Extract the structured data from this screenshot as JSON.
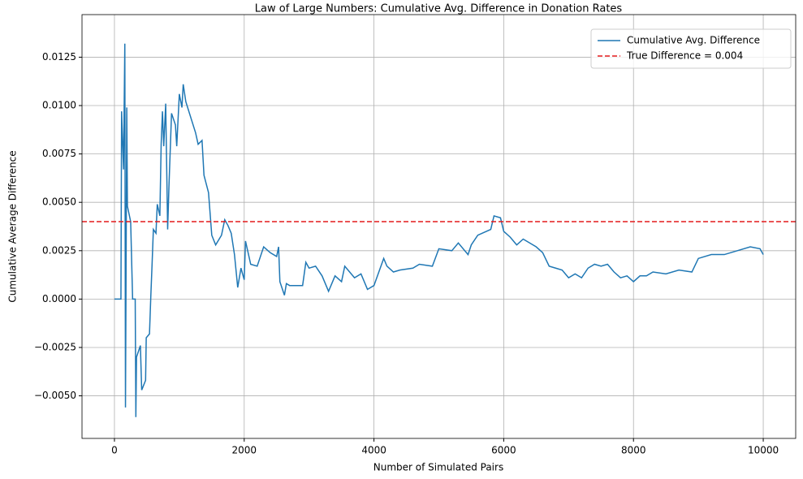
{
  "chart_data": {
    "type": "line",
    "title": "Law of Large Numbers: Cumulative Avg. Difference in Donation Rates",
    "x_label": "Number of Simulated Pairs",
    "y_label": "Cumulative Average Difference",
    "x": [
      0,
      100,
      110,
      140,
      160,
      170,
      190,
      200,
      250,
      280,
      320,
      330,
      340,
      400,
      420,
      480,
      490,
      540,
      560,
      580,
      600,
      640,
      660,
      700,
      720,
      740,
      760,
      790,
      820,
      840,
      880,
      940,
      960,
      1000,
      1040,
      1060,
      1100,
      1250,
      1290,
      1350,
      1380,
      1450,
      1500,
      1560,
      1650,
      1700,
      1750,
      1800,
      1850,
      1900,
      1950,
      2000,
      2020,
      2100,
      2200,
      2300,
      2400,
      2500,
      2530,
      2550,
      2620,
      2650,
      2700,
      2900,
      2950,
      3000,
      3100,
      3200,
      3300,
      3400,
      3500,
      3550,
      3700,
      3800,
      3900,
      4000,
      4150,
      4200,
      4300,
      4400,
      4600,
      4700,
      4900,
      5000,
      5200,
      5300,
      5450,
      5500,
      5600,
      5800,
      5850,
      5950,
      6000,
      6100,
      6200,
      6300,
      6400,
      6500,
      6600,
      6700,
      6800,
      6900,
      7000,
      7100,
      7200,
      7300,
      7400,
      7500,
      7600,
      7700,
      7800,
      7900,
      8000,
      8100,
      8200,
      8300,
      8500,
      8700,
      8900,
      9000,
      9200,
      9400,
      9600,
      9800,
      9950,
      10000
    ],
    "series": [
      {
        "name": "Cumulative Avg. Difference",
        "color": "#1f77b4",
        "values": [
          0,
          0,
          0.0097,
          0.0067,
          0.0132,
          -0.0056,
          0.0099,
          0.0048,
          0.004,
          0,
          0,
          -0.0061,
          -0.003,
          -0.0024,
          -0.0047,
          -0.0042,
          -0.002,
          -0.0018,
          0.0001,
          0.0018,
          0.0036,
          0.0034,
          0.0049,
          0.0043,
          0.008,
          0.0097,
          0.0079,
          0.0101,
          0.0036,
          0.0058,
          0.0096,
          0.009,
          0.0079,
          0.0106,
          0.0099,
          0.0111,
          0.0102,
          0.0086,
          0.008,
          0.0082,
          0.0064,
          0.0055,
          0.0033,
          0.0028,
          0.0033,
          0.0041,
          0.0038,
          0.0034,
          0.0023,
          0.0006,
          0.0016,
          0.001,
          0.003,
          0.0018,
          0.0017,
          0.0027,
          0.0024,
          0.0022,
          0.0027,
          0.0009,
          0.0002,
          0.0008,
          0.0007,
          0.0007,
          0.0019,
          0.0016,
          0.0017,
          0.0012,
          0.0004,
          0.0012,
          0.0009,
          0.0017,
          0.0011,
          0.0013,
          0.0005,
          0.0007,
          0.0021,
          0.0017,
          0.0014,
          0.0015,
          0.0016,
          0.0018,
          0.0017,
          0.0026,
          0.0025,
          0.0029,
          0.0023,
          0.0028,
          0.0033,
          0.0036,
          0.0043,
          0.0042,
          0.0035,
          0.0032,
          0.0028,
          0.0031,
          0.0029,
          0.0027,
          0.0024,
          0.0017,
          0.0016,
          0.0015,
          0.0011,
          0.0013,
          0.0011,
          0.0016,
          0.0018,
          0.0017,
          0.0018,
          0.0014,
          0.0011,
          0.0012,
          0.0009,
          0.0012,
          0.0012,
          0.0014,
          0.0013,
          0.0015,
          0.0014,
          0.0021,
          0.0023,
          0.0023,
          0.0025,
          0.0027,
          0.0026,
          0.0023
        ]
      }
    ],
    "reference_line": {
      "name": "True Difference = 0.004",
      "value": 0.004,
      "color": "#e41a1c",
      "style": "dashed"
    },
    "xlim": [
      -500,
      10500
    ],
    "ylim": [
      -0.0072,
      0.0147
    ],
    "xticks": [
      0,
      2000,
      4000,
      6000,
      8000,
      10000
    ],
    "yticks": [
      {
        "value": -0.005,
        "label": "−0.0050"
      },
      {
        "value": -0.0025,
        "label": "−0.0025"
      },
      {
        "value": 0,
        "label": "0.0000"
      },
      0.0025,
      {
        "value": 0.005,
        "label": "0.0050"
      },
      0.0075,
      {
        "value": 0.01,
        "label": "0.0100"
      },
      0.0125
    ],
    "grid": true,
    "legend": "upper right"
  }
}
